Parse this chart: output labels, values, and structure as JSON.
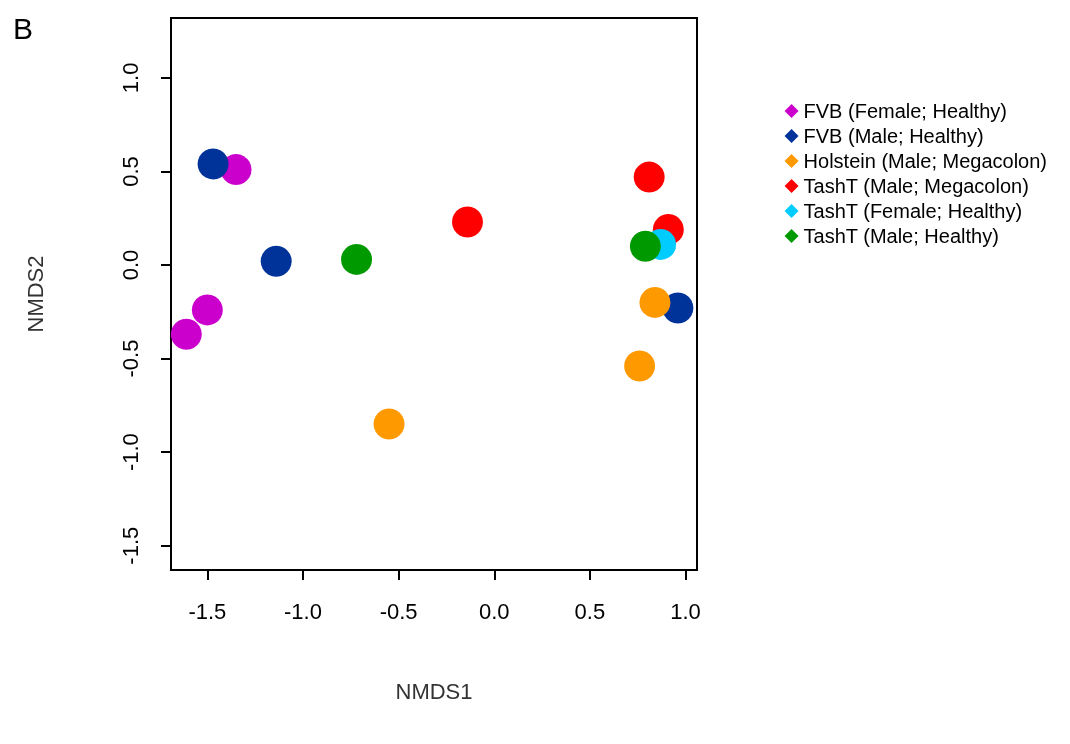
{
  "chart_data": {
    "type": "scatter",
    "title": "B",
    "xlabel": "NMDS1",
    "ylabel": "NMDS2",
    "xlim": [
      -1.69,
      1.06
    ],
    "xticks": [
      -1.5,
      {
        "value": -1,
        "label": "-1.0"
      },
      -0.5,
      {
        "value": 0,
        "label": "0.0"
      },
      0.5,
      {
        "value": 1,
        "label": "1.0"
      }
    ],
    "ylim": [
      -1.63,
      1.32
    ],
    "yticks": [
      -1.5,
      {
        "value": -1,
        "label": "-1.0"
      },
      -0.5,
      {
        "value": 0,
        "label": "0.0"
      },
      0.5,
      {
        "value": 1,
        "label": "1.0"
      }
    ],
    "grid": false,
    "legend": "right",
    "marker": "circle",
    "series": [
      {
        "name": "FVB (Female; Healthy)",
        "color": "#cc00cc",
        "x": [
          -1.35,
          -1.5,
          -1.61
        ],
        "values": [
          0.51,
          -0.24,
          -0.37
        ]
      },
      {
        "name": "FVB (Male; Healthy)",
        "color": "#003399",
        "x": [
          -1.47,
          -1.14,
          0.96
        ],
        "values": [
          0.54,
          0.02,
          -0.23
        ]
      },
      {
        "name": "Holstein (Male; Megacolon)",
        "color": "#ff9900",
        "x": [
          -0.55,
          0.76,
          0.84
        ],
        "values": [
          -0.85,
          -0.54,
          -0.2
        ]
      },
      {
        "name": "TashT (Male; Megacolon)",
        "color": "#ff0000",
        "x": [
          -0.14,
          0.81,
          0.91
        ],
        "values": [
          0.23,
          0.47,
          0.19
        ]
      },
      {
        "name": "TashT (Female; Healthy)",
        "color": "#00ccff",
        "x": [
          0.87
        ],
        "values": [
          0.11
        ]
      },
      {
        "name": "TashT (Male; Healthy)",
        "color": "#009900",
        "x": [
          -0.72,
          0.79
        ],
        "values": [
          0.03,
          0.1
        ]
      }
    ]
  }
}
